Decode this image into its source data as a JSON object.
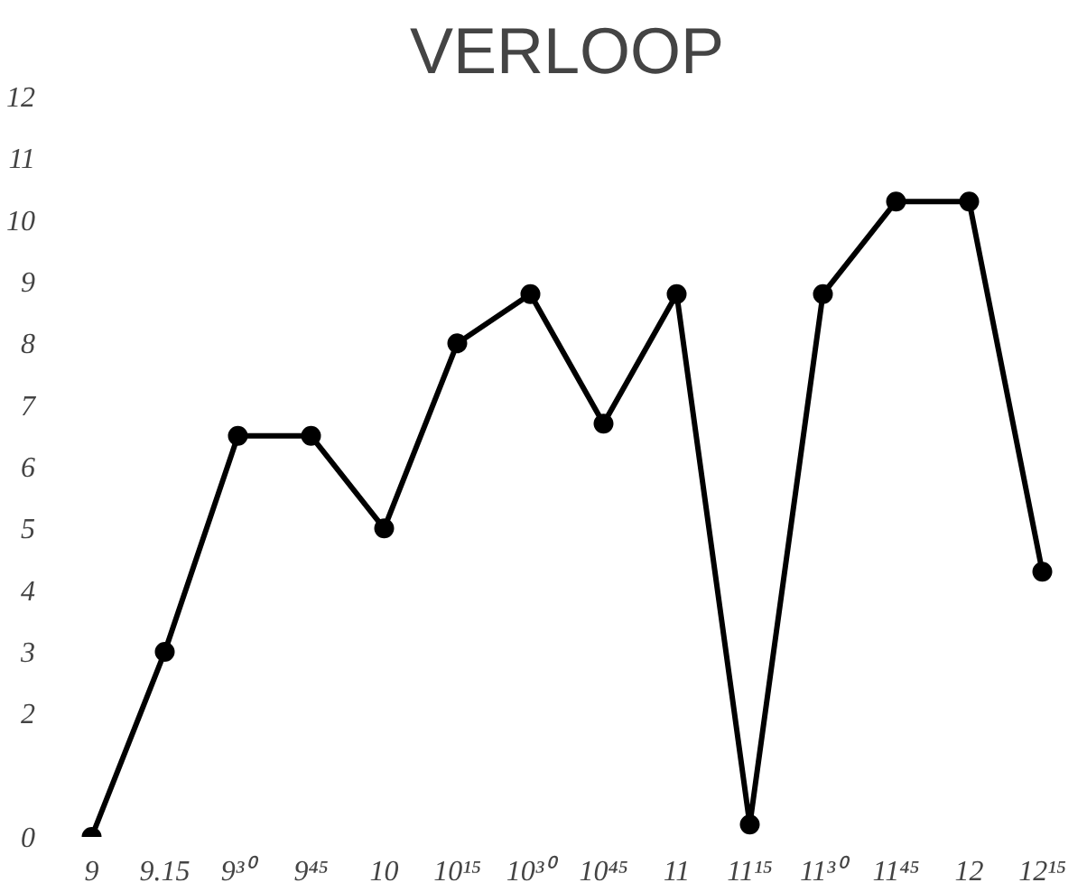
{
  "chart_data": {
    "type": "line",
    "title": "VERLOOP",
    "categories": [
      "9",
      "9.15",
      "9³⁰",
      "9⁴⁵",
      "10",
      "10¹⁵",
      "10³⁰",
      "10⁴⁵",
      "11",
      "11¹⁵",
      "11³⁰",
      "11⁴⁵",
      "12",
      "12¹⁵"
    ],
    "series": [
      {
        "color": "#000000",
        "values": [
          0,
          3,
          6.5,
          6.5,
          5,
          8,
          8.8,
          6.7,
          8.8,
          0.2,
          8.8,
          10.3,
          10.3,
          4.3
        ]
      }
    ],
    "ylim": [
      0,
      12
    ],
    "yticks": [
      0,
      2,
      3,
      4,
      5,
      6,
      7,
      8,
      9,
      10,
      11,
      12
    ],
    "grid": false,
    "marker": "circle",
    "line_style": "solid"
  }
}
